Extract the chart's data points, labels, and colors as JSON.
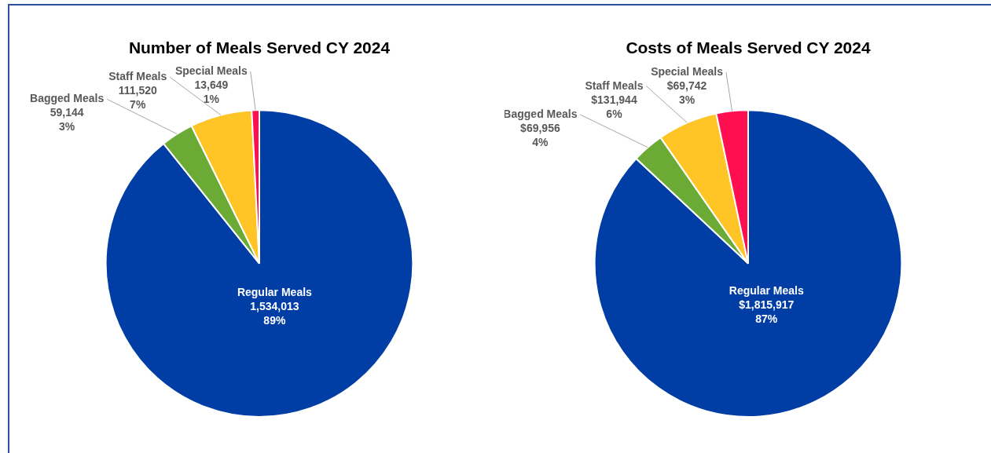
{
  "chart_data": [
    {
      "type": "pie",
      "title": "Number of Meals Served CY 2024",
      "categories": [
        "Regular Meals",
        "Bagged Meals",
        "Staff Meals",
        "Special Meals"
      ],
      "values": [
        1534013,
        59144,
        111520,
        13649
      ],
      "colors": [
        "#003da5",
        "#6aaa35",
        "#ffc426",
        "#ff0f50"
      ],
      "value_labels": [
        "1,534,013\n89%",
        "59,144\n3%",
        "111,520\n7%",
        "13,649\n1%"
      ],
      "legend": false
    },
    {
      "type": "pie",
      "title": "Costs of Meals Served CY 2024",
      "categories": [
        "Regular Meals",
        "Bagged Meals",
        "Staff Meals",
        "Special Meals"
      ],
      "values": [
        1815917,
        69956,
        131944,
        69742
      ],
      "colors": [
        "#003da5",
        "#6aaa35",
        "#ffc426",
        "#ff0f50"
      ],
      "value_labels": [
        "$1,815,917\n87%",
        "$69,956\n4%",
        "$131,944\n6%",
        "$69,742\n3%"
      ],
      "legend": false
    }
  ]
}
